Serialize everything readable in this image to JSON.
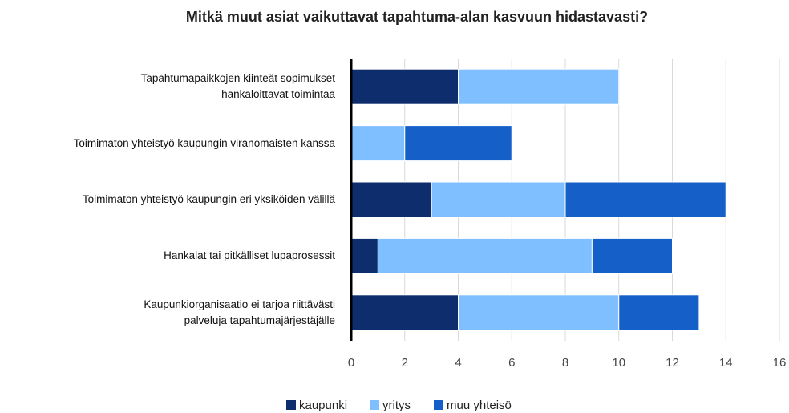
{
  "chart_data": {
    "type": "stacked-horizontal-bar",
    "title": "Mitkä muut asiat vaikuttavat tapahtuma-alan kasvuun hidastavasti?",
    "categories": [
      "Tapahtumapaikkojen kiinteät sopimukset\nhankaloittavat toimintaa",
      "Toimimaton yhteistyö kaupungin viranomaisten kanssa",
      "Toimimaton yhteistyö kaupungin eri yksiköiden välillä",
      "Hankalat tai pitkälliset lupaprosessit",
      "Kaupunkiorganisaatio ei tarjoa riittävästi\npalveluja tapahtumajärjestäjälle"
    ],
    "series": [
      {
        "name": "kaupunki",
        "color": "#0d2d6c",
        "values": [
          4,
          0,
          3,
          1,
          4
        ]
      },
      {
        "name": "yritys",
        "color": "#7fbfff",
        "values": [
          6,
          2,
          5,
          8,
          6
        ]
      },
      {
        "name": "muu yhteisö",
        "color": "#1560c8",
        "values": [
          0,
          4,
          6,
          3,
          3
        ]
      }
    ],
    "xlim": [
      0,
      16
    ],
    "xticks": [
      0,
      2,
      4,
      6,
      8,
      10,
      12,
      14,
      16
    ],
    "grid": true,
    "legend": "bottom"
  }
}
